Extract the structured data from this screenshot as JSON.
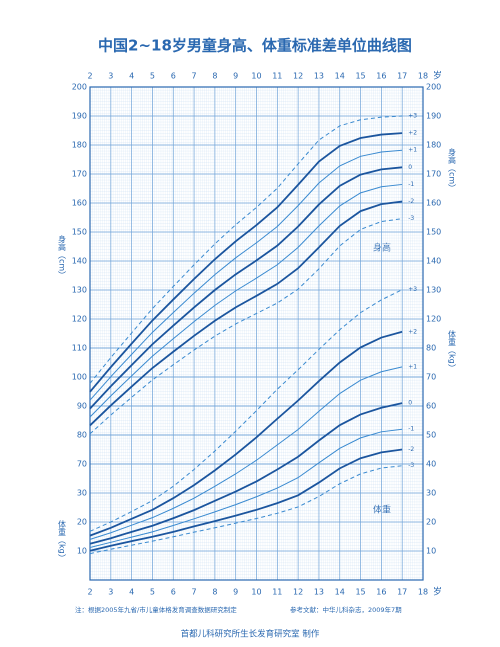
{
  "chart_data": {
    "type": "line",
    "title": "中国2~18岁男童身高、体重标准差单位曲线图",
    "x": [
      2,
      3,
      4,
      5,
      6,
      7,
      8,
      9,
      10,
      11,
      12,
      13,
      14,
      15,
      16,
      17
    ],
    "xlim": [
      2,
      18
    ],
    "xticks": [
      2,
      3,
      4,
      5,
      6,
      7,
      8,
      9,
      10,
      11,
      12,
      13,
      14,
      15,
      16,
      17,
      18
    ],
    "x_unit": "岁",
    "ylim": [
      30,
      200
    ],
    "yticks": [
      70,
      80,
      90,
      100,
      110,
      120,
      130,
      140,
      150,
      160,
      170,
      180,
      190,
      200
    ],
    "y_label": "身高（cm）",
    "y2lim": [
      0,
      170
    ],
    "y2ticks": [
      10,
      20,
      30,
      40,
      50,
      60,
      70,
      80
    ],
    "y2_label": "体重（kg）",
    "grid": true,
    "series": [
      {
        "name": "+3",
        "color": "#3a8ad0",
        "dashed": true,
        "values": [
          97.8,
          106.7,
          115.2,
          123.6,
          131.2,
          138.7,
          145.9,
          152.5,
          158.5,
          165.1,
          173.5,
          181.7,
          186.6,
          188.7,
          189.6,
          190.0
        ]
      },
      {
        "name": "+2",
        "color": "#1b559e",
        "dashed": false,
        "values": [
          94.9,
          103.4,
          111.5,
          119.5,
          126.7,
          133.8,
          140.6,
          146.8,
          152.4,
          158.5,
          166.3,
          174.3,
          179.7,
          182.4,
          183.6,
          184.1
        ]
      },
      {
        "name": "+1",
        "color": "#3a8ad0",
        "dashed": false,
        "values": [
          92.0,
          100.1,
          107.8,
          115.4,
          122.2,
          128.9,
          135.3,
          141.1,
          146.3,
          151.9,
          159.1,
          166.9,
          172.8,
          176.1,
          177.6,
          178.2
        ]
      },
      {
        "name": "0",
        "color": "#1b559e",
        "dashed": false,
        "values": [
          89.1,
          96.8,
          104.1,
          111.3,
          117.7,
          124.0,
          130.0,
          135.4,
          140.2,
          145.3,
          151.9,
          159.5,
          165.9,
          169.8,
          171.6,
          172.3
        ]
      },
      {
        "name": "-1",
        "color": "#3a8ad0",
        "dashed": false,
        "values": [
          86.2,
          93.5,
          100.4,
          107.2,
          113.2,
          119.1,
          124.7,
          129.7,
          134.1,
          138.7,
          144.7,
          152.1,
          159.0,
          163.5,
          165.6,
          166.4
        ]
      },
      {
        "name": "-2",
        "color": "#1b559e",
        "dashed": false,
        "values": [
          83.3,
          90.2,
          96.7,
          103.1,
          108.7,
          114.2,
          119.4,
          124.0,
          128.0,
          132.1,
          137.5,
          144.7,
          152.1,
          157.2,
          159.6,
          160.5
        ]
      },
      {
        "name": "-3",
        "color": "#3a8ad0",
        "dashed": true,
        "values": [
          80.4,
          86.9,
          93.0,
          99.0,
          104.2,
          109.3,
          114.1,
          118.3,
          121.9,
          125.5,
          130.3,
          137.3,
          145.2,
          150.9,
          153.6,
          154.6
        ]
      },
      {
        "name": "+3",
        "color": "#3a8ad0",
        "dashed": true,
        "axis": "y2",
        "values": [
          16.8,
          20.0,
          23.6,
          27.4,
          32.3,
          38.1,
          44.5,
          51.3,
          58.4,
          65.8,
          72.5,
          79.5,
          86.3,
          92.2,
          96.6,
          100.1
        ]
      },
      {
        "name": "+2",
        "color": "#1b559e",
        "dashed": false,
        "axis": "y2",
        "values": [
          15.3,
          18.0,
          21.1,
          24.2,
          28.2,
          32.7,
          37.8,
          43.3,
          49.2,
          55.6,
          61.9,
          68.6,
          75.0,
          80.2,
          83.6,
          85.6
        ]
      },
      {
        "name": "+1",
        "color": "#3a8ad0",
        "dashed": false,
        "axis": "y2",
        "values": [
          14.0,
          16.3,
          18.9,
          21.5,
          24.7,
          28.2,
          32.3,
          36.6,
          41.3,
          46.6,
          51.9,
          58.2,
          64.3,
          68.9,
          71.8,
          73.5
        ]
      },
      {
        "name": "0",
        "color": "#1b559e",
        "dashed": false,
        "axis": "y2",
        "values": [
          12.5,
          14.4,
          16.6,
          18.7,
          21.3,
          24.1,
          27.3,
          30.5,
          34.0,
          38.1,
          42.5,
          48.1,
          53.4,
          57.1,
          59.4,
          61.0
        ]
      },
      {
        "name": "-1",
        "color": "#3a8ad0",
        "dashed": false,
        "axis": "y2",
        "values": [
          11.2,
          13.0,
          14.8,
          16.6,
          18.8,
          21.1,
          23.5,
          26.0,
          28.7,
          31.7,
          35.3,
          40.4,
          45.4,
          49.0,
          51.1,
          52.0
        ]
      },
      {
        "name": "-2",
        "color": "#1b559e",
        "dashed": false,
        "axis": "y2",
        "values": [
          10.1,
          11.8,
          13.4,
          14.9,
          16.6,
          18.5,
          20.3,
          22.2,
          24.2,
          26.5,
          29.2,
          33.6,
          38.5,
          42.0,
          44.0,
          45.0
        ]
      },
      {
        "name": "-3",
        "color": "#3a8ad0",
        "dashed": true,
        "axis": "y2",
        "values": [
          9.1,
          10.6,
          12.0,
          13.4,
          14.9,
          16.5,
          18.0,
          19.6,
          21.2,
          23.0,
          25.2,
          28.8,
          33.2,
          36.6,
          38.6,
          39.4
        ]
      }
    ],
    "annotations": [
      "身高",
      "体重"
    ],
    "note": "注：根据2005年九省/市儿童体格发育调查数据研究制定",
    "reference": "参考文献：中华儿科杂志，2009年7期",
    "footer": "首都儿科研究所生长发育研究室  制作"
  }
}
